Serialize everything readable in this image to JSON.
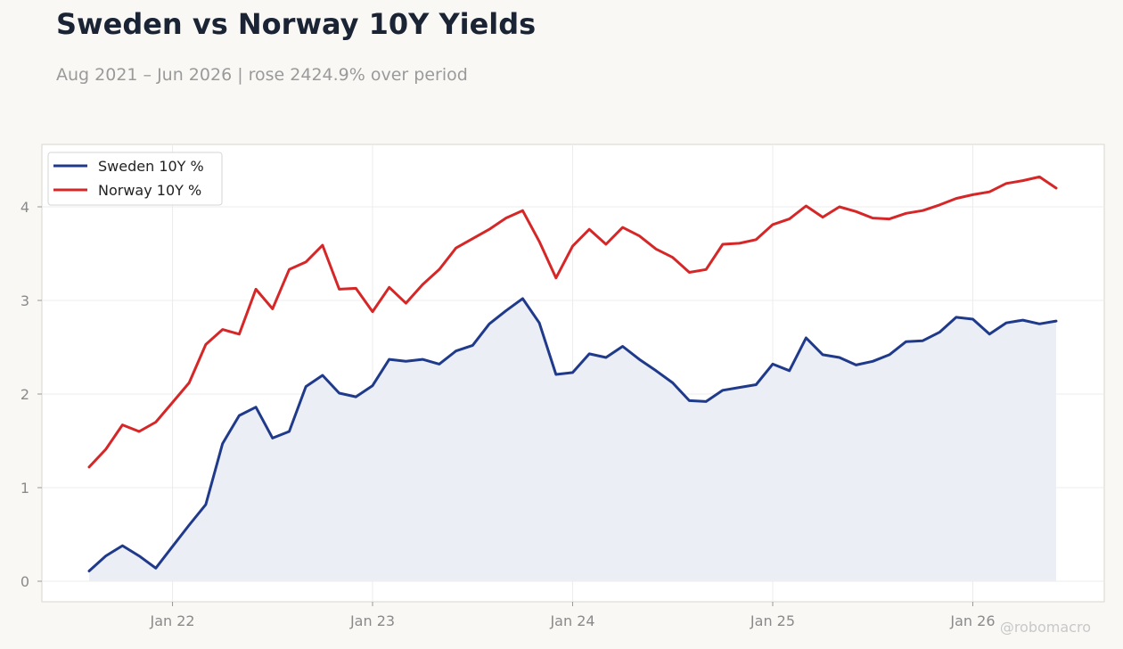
{
  "title": "Sweden vs Norway 10Y Yields",
  "subtitle": "Aug 2021 – Jun 2026 | rose 2424.9% over period",
  "watermark": "@robomacro",
  "colors": {
    "page_background": "#f9f8f5",
    "plot_background": "#ffffff",
    "sweden": "#1f3a8a",
    "norway": "#d62728",
    "sweden_fill": "#eceef5",
    "title": "#1b2435",
    "axis_text": "#8a8a8a",
    "grid": "#ececec"
  },
  "chart_data": {
    "type": "line",
    "title": "Sweden vs Norway 10Y Yields",
    "xlabel": "",
    "ylabel": "",
    "x_start": "2021-08",
    "x_end": "2026-06",
    "xticks": [
      "Jan 22",
      "Jan 23",
      "Jan 24",
      "Jan 25",
      "Jan 26"
    ],
    "xtick_dates": [
      "2022-01",
      "2023-01",
      "2024-01",
      "2025-01",
      "2026-01"
    ],
    "yticks": [
      0,
      1,
      2,
      3,
      4
    ],
    "ylim": [
      -0.22,
      4.4
    ],
    "grid": true,
    "legend_position": "top-left",
    "x": [
      "2021-08",
      "2021-09",
      "2021-10",
      "2021-11",
      "2021-12",
      "2022-01",
      "2022-02",
      "2022-03",
      "2022-04",
      "2022-05",
      "2022-06",
      "2022-07",
      "2022-08",
      "2022-09",
      "2022-10",
      "2022-11",
      "2022-12",
      "2023-01",
      "2023-02",
      "2023-03",
      "2023-04",
      "2023-05",
      "2023-06",
      "2023-07",
      "2023-08",
      "2023-09",
      "2023-10",
      "2023-11",
      "2023-12",
      "2024-01",
      "2024-02",
      "2024-03",
      "2024-04",
      "2024-05",
      "2024-06",
      "2024-07",
      "2024-08",
      "2024-09",
      "2024-10",
      "2024-11",
      "2024-12",
      "2025-01",
      "2025-02",
      "2025-03",
      "2025-04",
      "2025-05",
      "2025-06",
      "2025-07",
      "2025-08",
      "2025-09",
      "2025-10",
      "2025-11",
      "2025-12",
      "2026-01",
      "2026-02",
      "2026-03",
      "2026-04",
      "2026-05",
      "2026-06"
    ],
    "series": [
      {
        "name": "Sweden 10Y %",
        "area": true,
        "values": [
          0.11,
          0.27,
          0.38,
          0.27,
          0.14,
          0.37,
          0.6,
          0.82,
          1.47,
          1.77,
          1.86,
          1.53,
          1.6,
          2.08,
          2.2,
          2.01,
          1.97,
          2.09,
          2.37,
          2.35,
          2.37,
          2.32,
          2.46,
          2.52,
          2.75,
          2.89,
          3.02,
          2.76,
          2.21,
          2.23,
          2.43,
          2.39,
          2.51,
          2.37,
          2.25,
          2.12,
          1.93,
          1.92,
          2.04,
          2.07,
          2.1,
          2.32,
          2.25,
          2.6,
          2.42,
          2.39,
          2.31,
          2.35,
          2.42,
          2.56,
          2.57,
          2.66,
          2.82,
          2.8,
          2.64,
          2.76,
          2.79,
          2.75,
          2.78
        ]
      },
      {
        "name": "Norway 10Y %",
        "area": false,
        "values": [
          1.22,
          1.41,
          1.67,
          1.6,
          1.7,
          1.91,
          2.12,
          2.53,
          2.69,
          2.64,
          3.12,
          2.91,
          3.33,
          3.41,
          3.59,
          3.12,
          3.13,
          2.88,
          3.14,
          2.97,
          3.17,
          3.33,
          3.56,
          3.66,
          3.76,
          3.88,
          3.96,
          3.63,
          3.24,
          3.58,
          3.76,
          3.6,
          3.78,
          3.69,
          3.55,
          3.46,
          3.3,
          3.33,
          3.6,
          3.61,
          3.65,
          3.81,
          3.87,
          4.01,
          3.89,
          4.0,
          3.95,
          3.88,
          3.87,
          3.93,
          3.96,
          4.02,
          4.09,
          4.13,
          4.16,
          4.25,
          4.28,
          4.32,
          4.2
        ]
      }
    ]
  }
}
